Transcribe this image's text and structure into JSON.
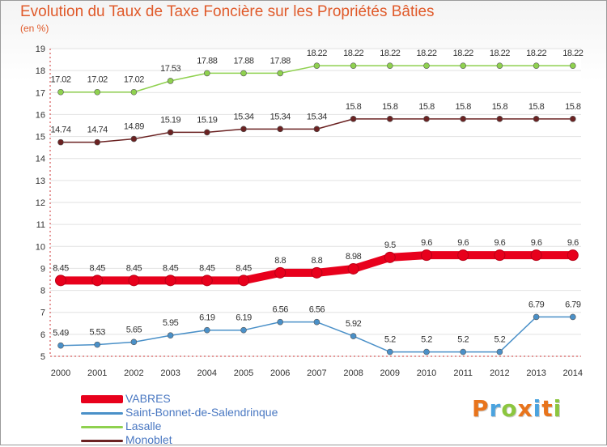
{
  "title": "Evolution du Taux de Taxe Foncière sur les Propriétés Bâties",
  "subtitle": "(en %)",
  "logo": {
    "text": "Proxiti"
  },
  "chart_data": {
    "type": "line",
    "title": "Evolution du Taux de Taxe Foncière sur les Propriétés Bâties",
    "ylabel": "(en %)",
    "xlabel": "",
    "ylim": [
      5,
      19
    ],
    "y_ticks": [
      "5",
      "6",
      "7",
      "8",
      "9",
      "10",
      "11",
      "12",
      "13",
      "14",
      "15",
      "16",
      "17",
      "18",
      "19"
    ],
    "categories": [
      "2000",
      "2001",
      "2002",
      "2003",
      "2004",
      "2005",
      "2006",
      "2007",
      "2008",
      "2009",
      "2010",
      "2011",
      "2012",
      "2013",
      "2014"
    ],
    "series": [
      {
        "name": "VABRES",
        "color": "#e8001c",
        "values": [
          8.45,
          8.45,
          8.45,
          8.45,
          8.45,
          8.45,
          8.8,
          8.8,
          8.98,
          9.5,
          9.6,
          9.6,
          9.6,
          9.6,
          9.6
        ],
        "labels": [
          "8.45",
          "8.45",
          "8.45",
          "8.45",
          "8.45",
          "8.45",
          "8.8",
          "8.8",
          "8.98",
          "9.5",
          "9.6",
          "9.6",
          "9.6",
          "9.6",
          "9.6"
        ]
      },
      {
        "name": "Saint-Bonnet-de-Salendrinque",
        "color": "#4a90c8",
        "values": [
          5.49,
          5.53,
          5.65,
          5.95,
          6.19,
          6.19,
          6.56,
          6.56,
          5.92,
          5.2,
          5.2,
          5.2,
          5.2,
          6.79,
          6.79
        ],
        "labels": [
          "5.49",
          "5.53",
          "5.65",
          "5.95",
          "6.19",
          "6.19",
          "6.56",
          "6.56",
          "5.92",
          "5.2",
          "5.2",
          "5.2",
          "5.2",
          "6.79",
          "6.79"
        ]
      },
      {
        "name": "Lasalle",
        "color": "#8fd14f",
        "values": [
          17.02,
          17.02,
          17.02,
          17.53,
          17.88,
          17.88,
          17.88,
          18.22,
          18.22,
          18.22,
          18.22,
          18.22,
          18.22,
          18.22,
          18.22
        ],
        "labels": [
          "17.02",
          "17.02",
          "17.02",
          "17.53",
          "17.88",
          "17.88",
          "17.88",
          "18.22",
          "18.22",
          "18.22",
          "18.22",
          "18.22",
          "18.22",
          "18.22",
          "18.22"
        ]
      },
      {
        "name": "Monoblet",
        "color": "#6b2222",
        "values": [
          14.74,
          14.74,
          14.89,
          15.19,
          15.19,
          15.34,
          15.34,
          15.34,
          15.8,
          15.8,
          15.8,
          15.8,
          15.8,
          15.8,
          15.8
        ],
        "labels": [
          "14.74",
          "14.74",
          "14.89",
          "15.19",
          "15.19",
          "15.34",
          "15.34",
          "15.34",
          "15.8",
          "15.8",
          "15.8",
          "15.8",
          "15.8",
          "15.8",
          "15.8"
        ]
      }
    ],
    "grid": true,
    "legend": "bottom-left"
  }
}
